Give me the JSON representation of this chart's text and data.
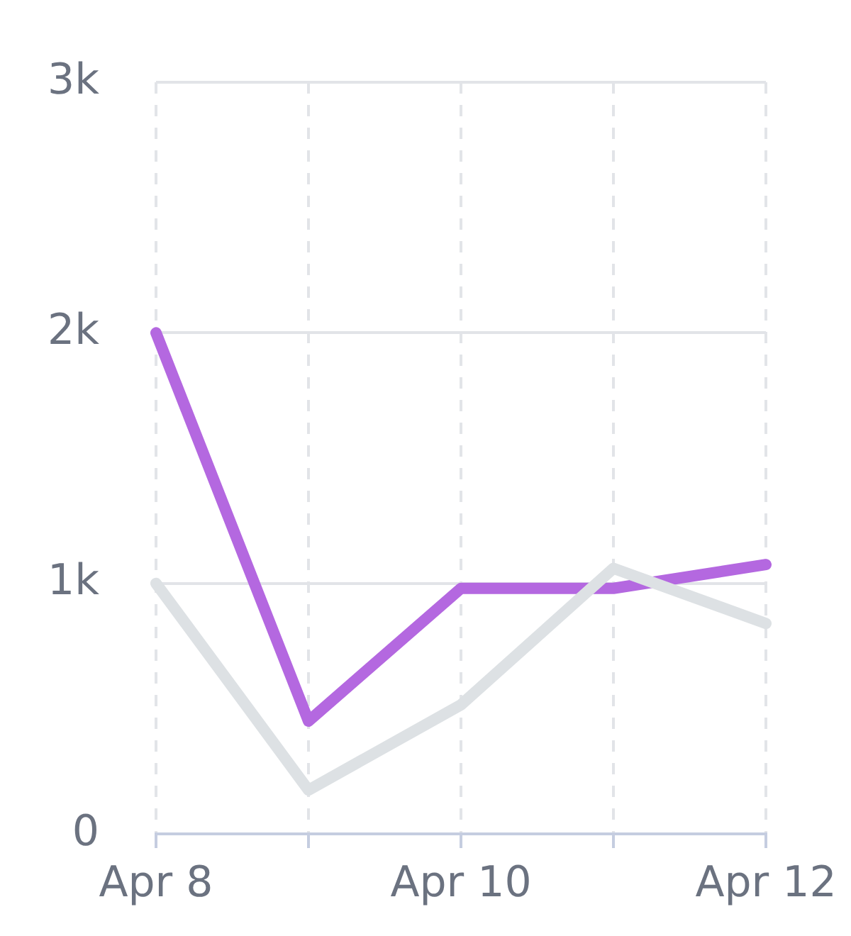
{
  "chart_data": {
    "type": "line",
    "categories": [
      "Apr 8",
      null,
      "Apr 10",
      null,
      "Apr 12"
    ],
    "series": [
      {
        "color": "#dde1e4",
        "values": [
          1000,
          175,
          515,
          1060,
          840
        ]
      },
      {
        "color": "#b468e0",
        "values": [
          2000,
          450,
          980,
          980,
          1075
        ]
      }
    ],
    "ylim": [
      0,
      3000
    ],
    "yticks": [
      0,
      {
        "value": 1000,
        "label": "1k"
      },
      {
        "value": 2000,
        "label": "2k"
      },
      {
        "value": 3000,
        "label": "3k"
      }
    ],
    "grid": true,
    "legend": false,
    "marker": "none",
    "line_style": "solid"
  }
}
